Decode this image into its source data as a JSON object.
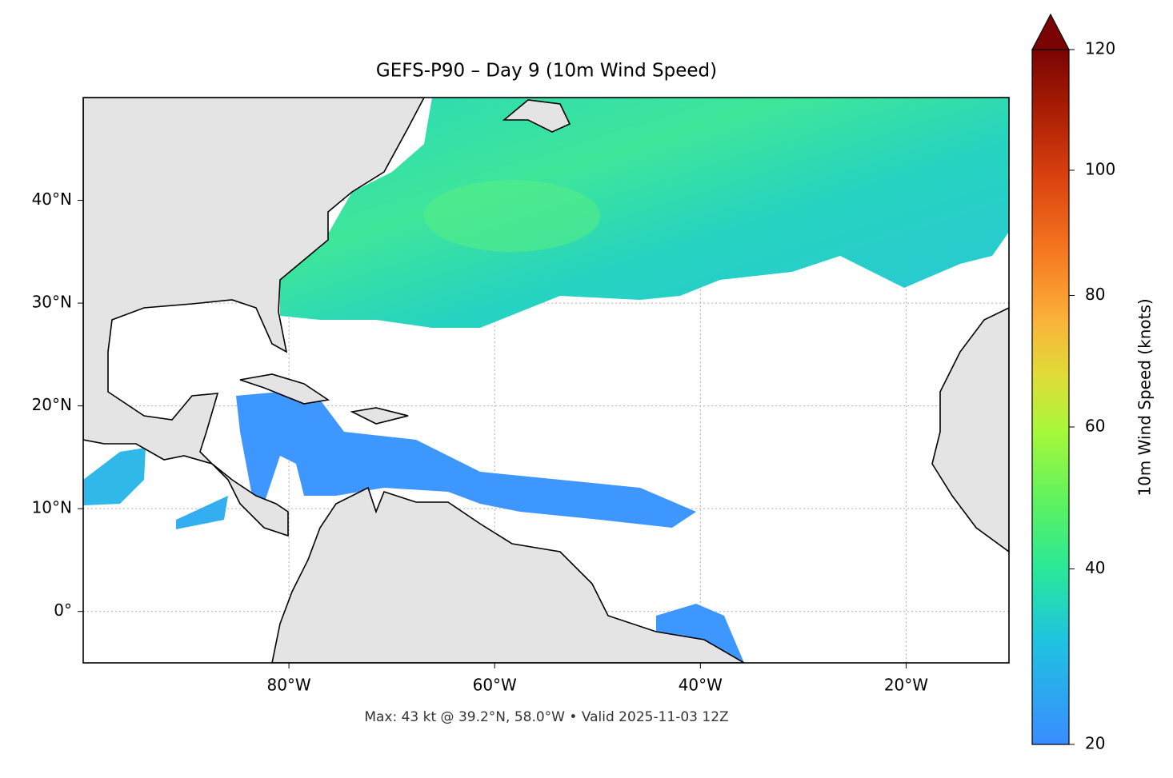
{
  "map": {
    "title": "GEFS-P90 – Day 9 (10m Wind Speed)",
    "footer": "Max: 43 kt @ 39.2°N, 58.0°W • Valid 2025-11-03 12Z",
    "xlim": [
      -100,
      -10
    ],
    "ylim": [
      -5,
      50
    ],
    "xticks": [
      {
        "value": -80,
        "label": "80°W"
      },
      {
        "value": -60,
        "label": "60°W"
      },
      {
        "value": -40,
        "label": "40°W"
      },
      {
        "value": -20,
        "label": "20°W"
      }
    ],
    "yticks": [
      {
        "value": 0,
        "label": "0°"
      },
      {
        "value": 10,
        "label": "10°N"
      },
      {
        "value": 20,
        "label": "20°N"
      },
      {
        "value": 30,
        "label": "30°N"
      },
      {
        "value": 40,
        "label": "40°N"
      }
    ],
    "grid": true,
    "colorbar": {
      "label": "10m Wind Speed (knots)",
      "lim": [
        20,
        120
      ],
      "scale": "power",
      "gamma": 0.855,
      "ticks": [
        20,
        40,
        60,
        80,
        100,
        120
      ]
    }
  }
}
